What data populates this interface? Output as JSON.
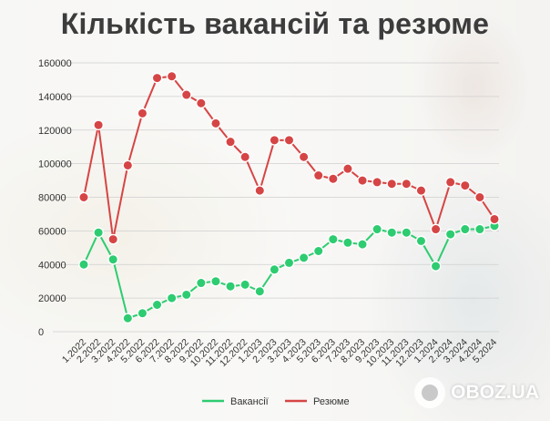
{
  "chart_data": {
    "type": "line",
    "title": "Кількість вакансій та резюме",
    "categories": [
      "1.2022",
      "2.2022",
      "3.2022",
      "4.2022",
      "5.2022",
      "6.2022",
      "7.2022",
      "8.2022",
      "9.2022",
      "10.2022",
      "11.2022",
      "12.2022",
      "1.2023",
      "2.2023",
      "3.2023",
      "4.2023",
      "5.2023",
      "6.2023",
      "7.2023",
      "8.2023",
      "9.2023",
      "10.2023",
      "11.2023",
      "12.2023",
      "1.2024",
      "2.2024",
      "3.2024",
      "4.2024",
      "5.2024"
    ],
    "yticks": [
      0,
      20000,
      40000,
      60000,
      80000,
      100000,
      120000,
      140000,
      160000
    ],
    "ylim": [
      0,
      160000
    ],
    "grid": true,
    "legend_position": "bottom",
    "series": [
      {
        "name": "Вакансії",
        "color": "#2ecc71",
        "values": [
          40000,
          59000,
          43000,
          8000,
          11000,
          16000,
          20000,
          22000,
          29000,
          30000,
          27000,
          28000,
          24000,
          37000,
          41000,
          44000,
          48000,
          55000,
          53000,
          52000,
          61000,
          59000,
          59000,
          54000,
          39000,
          58000,
          61000,
          61000,
          63000
        ]
      },
      {
        "name": "Резюме",
        "color": "#d64545",
        "values": [
          80000,
          123000,
          55000,
          99000,
          130000,
          151000,
          152000,
          141000,
          136000,
          124000,
          113000,
          104000,
          84000,
          114000,
          114000,
          104000,
          93000,
          91000,
          97000,
          90000,
          89000,
          88000,
          88000,
          84000,
          61000,
          89000,
          87000,
          80000,
          67000
        ]
      }
    ]
  },
  "watermark": {
    "text": "OBOZ.UA"
  }
}
